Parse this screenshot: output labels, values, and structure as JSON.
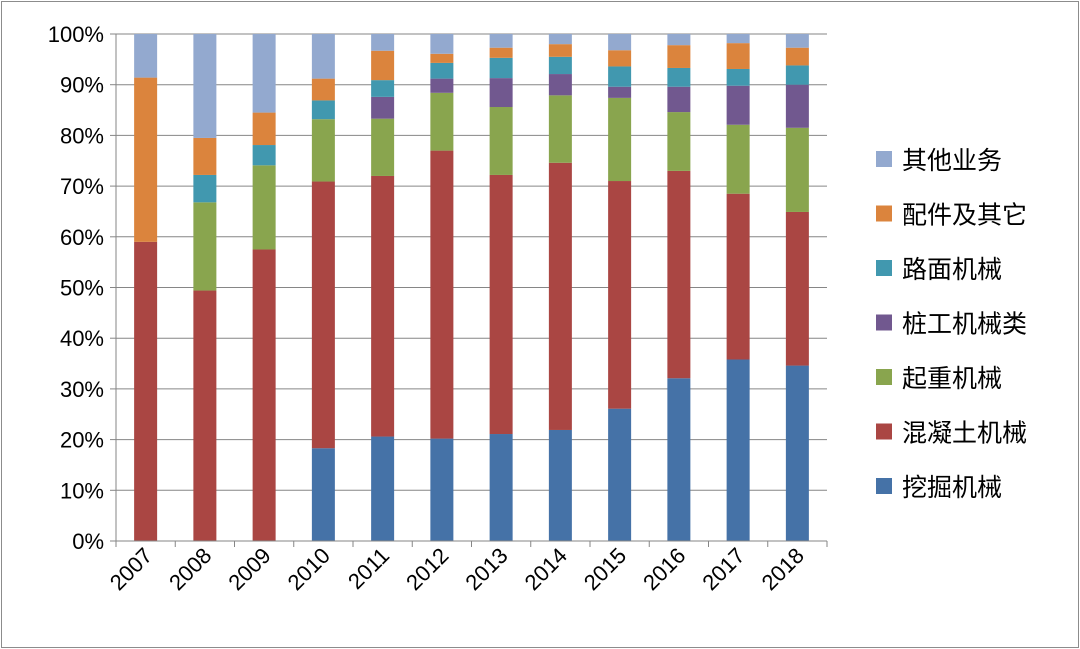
{
  "chart_data": {
    "type": "bar",
    "stacked": true,
    "percent": true,
    "categories": [
      "2007",
      "2008",
      "2009",
      "2010",
      "2011",
      "2012",
      "2013",
      "2014",
      "2015",
      "2016",
      "2017",
      "2018"
    ],
    "ylim": [
      0,
      100
    ],
    "yticks": [
      "0%",
      "10%",
      "20%",
      "30%",
      "40%",
      "50%",
      "60%",
      "70%",
      "80%",
      "90%",
      "100%"
    ],
    "grid": true,
    "legend_position": "right",
    "series": [
      {
        "name": "挖掘机械",
        "color": "#4572a7",
        "values": [
          0,
          0,
          0,
          18.3,
          20.6,
          20.2,
          21.1,
          21.9,
          26.1,
          32.1,
          35.8,
          34.6
        ]
      },
      {
        "name": "混凝土机械",
        "color": "#aa4643",
        "values": [
          59.0,
          49.4,
          57.5,
          52.6,
          51.4,
          56.8,
          51.1,
          52.7,
          44.9,
          40.9,
          32.7,
          30.3
        ]
      },
      {
        "name": "起重机械",
        "color": "#89a54e",
        "values": [
          0,
          17.4,
          16.6,
          12.3,
          11.3,
          11.4,
          13.4,
          13.3,
          16.4,
          11.6,
          13.6,
          16.6
        ]
      },
      {
        "name": "桩工机械类",
        "color": "#71588f",
        "values": [
          0,
          0,
          0,
          0,
          4.3,
          2.8,
          5.7,
          4.2,
          2.2,
          5.0,
          7.7,
          8.5
        ]
      },
      {
        "name": "路面机械",
        "color": "#4198af",
        "values": [
          0,
          5.4,
          4.0,
          3.7,
          3.3,
          3.1,
          4.0,
          3.4,
          4.0,
          3.7,
          3.3,
          3.8
        ]
      },
      {
        "name": "配件及其它",
        "color": "#db843d",
        "values": [
          32.4,
          7.3,
          6.4,
          4.3,
          5.8,
          1.8,
          2.0,
          2.5,
          3.2,
          4.5,
          5.1,
          3.5
        ]
      },
      {
        "name": "其他业务",
        "color": "#93a9cf",
        "values": [
          8.6,
          20.5,
          15.5,
          8.8,
          3.3,
          3.9,
          2.7,
          2.0,
          3.2,
          2.2,
          1.8,
          2.7
        ]
      }
    ]
  }
}
